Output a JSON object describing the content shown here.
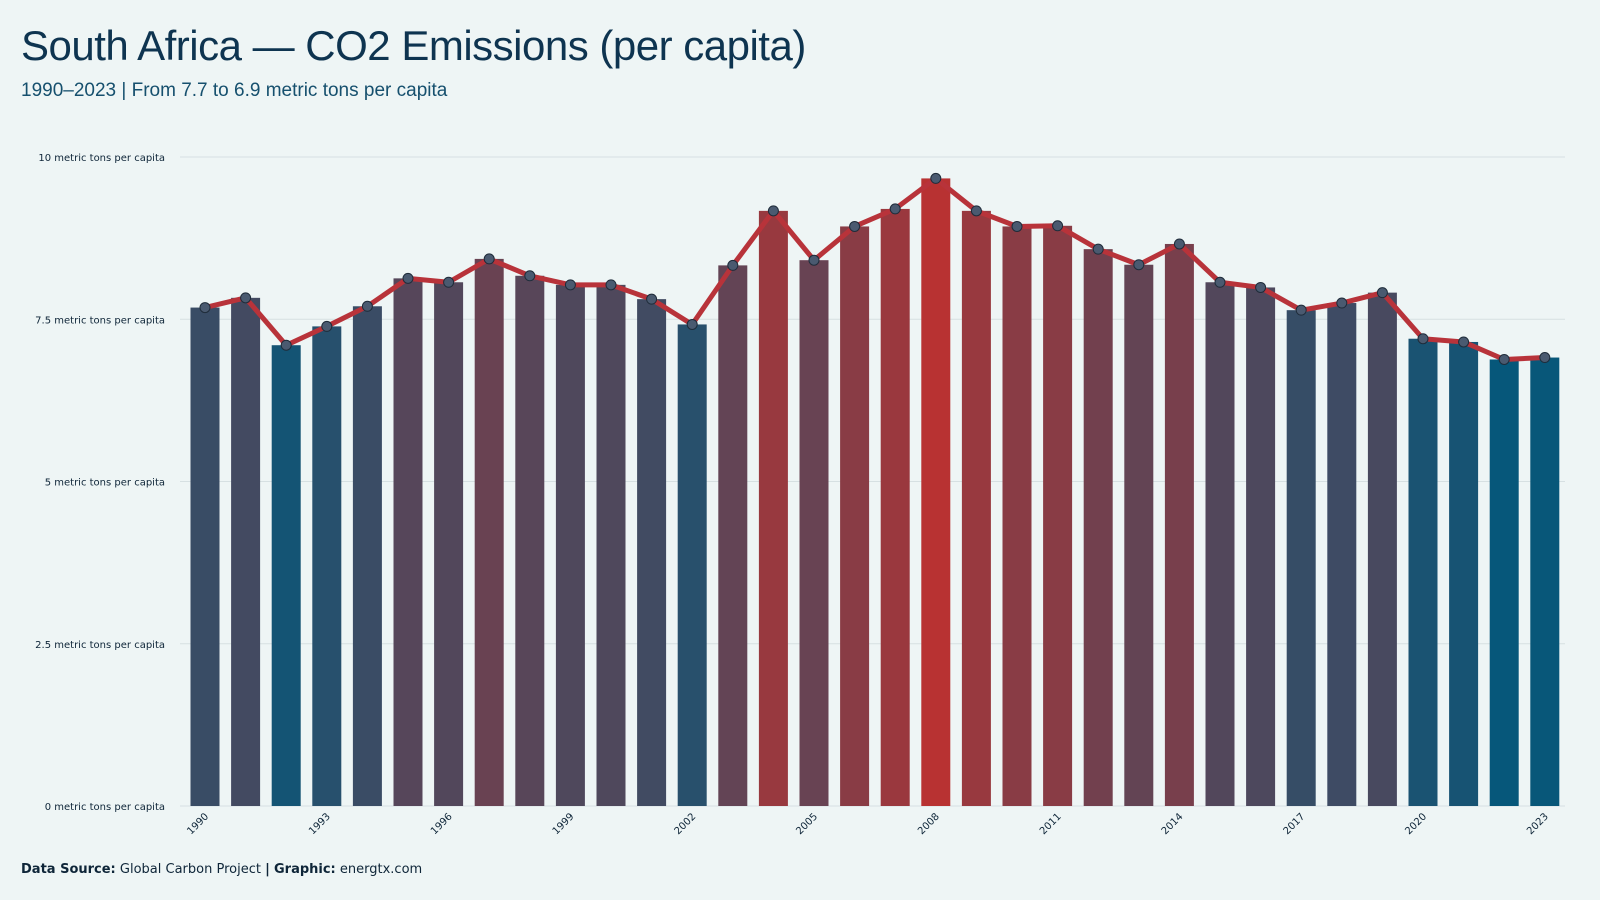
{
  "header": {
    "title": "South Africa — CO2 Emissions (per capita)",
    "subtitle": "1990–2023 | From 7.7 to 6.9 metric tons per capita"
  },
  "footer": {
    "source_label": "Data Source:",
    "source_value": "Global Carbon Project",
    "separator": "|",
    "graphic_label": "Graphic:",
    "graphic_value": "energtx.com"
  },
  "colors": {
    "background": "#eef5f5",
    "low": "#06577a",
    "high": "#b83232",
    "line": "#b8333a",
    "marker_fill": "#4a5a70",
    "gridline": "#d6e0e2"
  },
  "chart_data": {
    "type": "bar",
    "categories": [
      "1990",
      "1991",
      "1992",
      "1993",
      "1994",
      "1995",
      "1996",
      "1997",
      "1998",
      "1999",
      "2000",
      "2001",
      "2002",
      "2003",
      "2004",
      "2005",
      "2006",
      "2007",
      "2008",
      "2009",
      "2010",
      "2011",
      "2012",
      "2013",
      "2014",
      "2015",
      "2016",
      "2017",
      "2018",
      "2019",
      "2020",
      "2021",
      "2022",
      "2023"
    ],
    "values": [
      7.68,
      7.83,
      7.1,
      7.39,
      7.7,
      8.13,
      8.07,
      8.43,
      8.17,
      8.03,
      8.03,
      7.81,
      7.42,
      8.33,
      9.17,
      8.41,
      8.93,
      9.2,
      9.67,
      9.17,
      8.93,
      8.94,
      8.58,
      8.34,
      8.66,
      8.07,
      7.99,
      7.64,
      7.75,
      7.91,
      7.2,
      7.15,
      6.88,
      6.91
    ],
    "overlay": {
      "type": "line",
      "markers": true
    },
    "title": "South Africa — CO2 Emissions (per capita)",
    "subtitle": "1990–2023 | From 7.7 to 6.9 metric tons per capita",
    "xlabel": "",
    "ylabel": "",
    "ylim": [
      0,
      10
    ],
    "yticks": [
      0,
      2.5,
      5,
      7.5,
      10
    ],
    "ytick_labels": [
      "0 metric tons per capita",
      "2.5 metric tons per capita",
      "5 metric tons per capita",
      "7.5 metric tons per capita",
      "10 metric tons per capita"
    ],
    "xtick_labels": [
      "1990",
      "1993",
      "1996",
      "1999",
      "2002",
      "2005",
      "2008",
      "2011",
      "2014",
      "2017",
      "2020",
      "2023"
    ],
    "grid": true,
    "legend": "none"
  }
}
